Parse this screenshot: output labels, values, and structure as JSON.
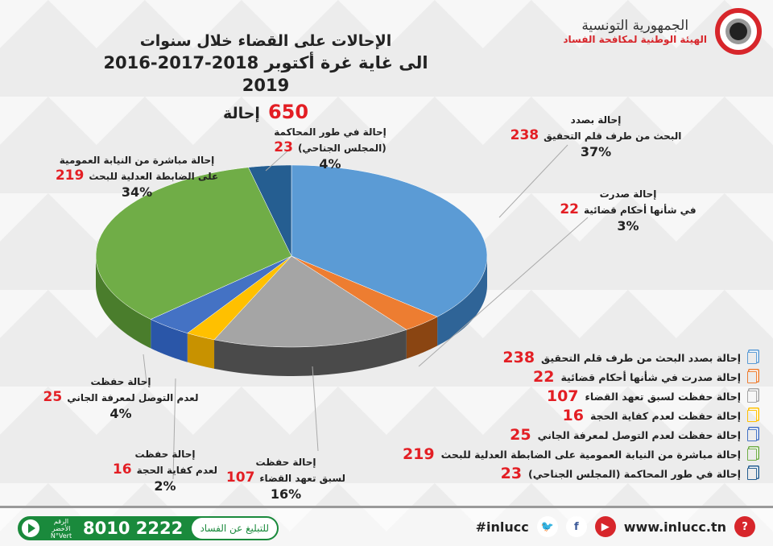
{
  "header": {
    "title_line1": "الإحالات على القضاء خلال سنوات",
    "title_line2": "2016-2017-2018 الى غاية غرة أكتوبر 2019",
    "total_value": "650",
    "total_unit": "إحالة",
    "logo_line1": "الجمهورية التونسية",
    "logo_line2": "الهيئة الوطنية لمكافحة الفساد"
  },
  "chart_data": {
    "type": "pie",
    "title": "الإحالات على القضاء خلال سنوات 2016-2017-2018 الى غاية غرة أكتوبر 2019",
    "total": 650,
    "slices": [
      {
        "name": "إحالة بصدد البحث من طرف قلم التحقيق",
        "line1": "إحالة بصدد",
        "line2": "البحث من طرف قلم التحقيق",
        "value": 238,
        "percent": "37%",
        "color": "#5b9bd5",
        "side": "#2f6497"
      },
      {
        "name": "إحالة صدرت في شأنها أحكام قضائية",
        "line1": "إحالة صدرت",
        "line2": "في شأنها أحكام قضائية",
        "value": 22,
        "percent": "3%",
        "color": "#ed7d31",
        "side": "#8a4512"
      },
      {
        "name": "إحالة حفظت لسبق تعهد القضاء",
        "line1": "إحالة حفظت",
        "line2": "لسبق تعهد القضاء",
        "value": 107,
        "percent": "16%",
        "color": "#a5a5a5",
        "side": "#4a4a4a"
      },
      {
        "name": "إحالة حفظت لعدم كفاية الحجة",
        "line1": "إحالة حفظت",
        "line2": "لعدم كفاية الحجة",
        "value": 16,
        "percent": "2%",
        "color": "#ffc000",
        "side": "#c89200"
      },
      {
        "name": "إحالة حفظت لعدم التوصل لمعرفة الجاني",
        "line1": "إحالة حفظت",
        "line2": "لعدم التوصل لمعرفة الجاني",
        "value": 25,
        "percent": "4%",
        "color": "#4472c4",
        "side": "#2a56a8"
      },
      {
        "name": "إحالة مباشرة من النيابة العمومية على الضابطة العدلية للبحث",
        "line1": "إحالة مباشرة من النيابة العمومية",
        "line2": "على الضابطة العدلية للبحث",
        "value": 219,
        "percent": "34%",
        "color": "#70ad47",
        "side": "#4a7d2c"
      },
      {
        "name": "إحالة في طور المحاكمة (المجلس الجناحي)",
        "line1": "إحالة في طور المحاكمة",
        "line2": "(المجلس الجناحي)",
        "value": 23,
        "percent": "4%",
        "color": "#255e91",
        "side": "#173d60"
      }
    ],
    "legend_position": "bottom-right"
  },
  "footer": {
    "hotline_label": "الرقم الأخضر N°Vert",
    "hotline_number": "8010 2222",
    "report_label": "للتبليغ عن الفساد",
    "website": "www.inlucc.tn",
    "hashtag": "#inlucc"
  }
}
